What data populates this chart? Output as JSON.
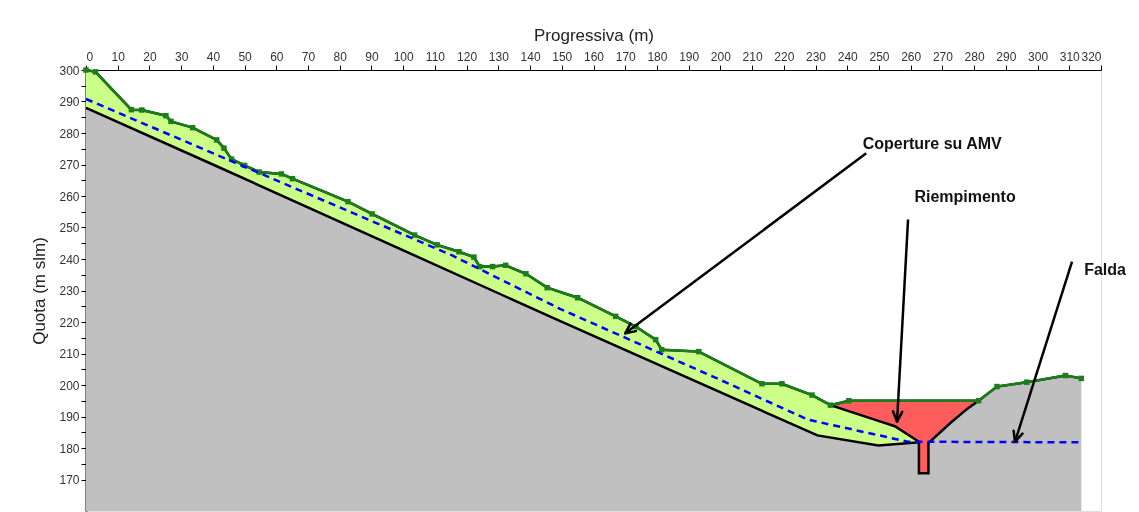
{
  "chart_data": {
    "type": "area",
    "xlabel": "Progressiva (m)",
    "ylabel": "Quota (m slm)",
    "xlim": [
      0,
      320
    ],
    "xticks": [
      0,
      10,
      20,
      30,
      40,
      50,
      60,
      70,
      80,
      90,
      100,
      110,
      120,
      130,
      140,
      150,
      160,
      170,
      180,
      190,
      200,
      210,
      220,
      230,
      240,
      250,
      260,
      270,
      280,
      290,
      300,
      310,
      320
    ],
    "ylim": [
      160,
      300
    ],
    "yticks": [
      170,
      {
        "value": 175,
        "label": null
      },
      180,
      {
        "value": 185,
        "label": null
      },
      190,
      {
        "value": 195,
        "label": null
      },
      200,
      {
        "value": 205,
        "label": null
      },
      210,
      {
        "value": 215,
        "label": null
      },
      220,
      {
        "value": 225,
        "label": null
      },
      230,
      {
        "value": 235,
        "label": null
      },
      240,
      {
        "value": 245,
        "label": null
      },
      250,
      {
        "value": 255,
        "label": null
      },
      260,
      {
        "value": 265,
        "label": null
      },
      270,
      {
        "value": 275,
        "label": null
      },
      280,
      {
        "value": 285,
        "label": null
      },
      290,
      {
        "value": 295,
        "label": null
      },
      300
    ],
    "grid": false,
    "annotations": [
      {
        "text": "Coperture su AMV",
        "x": 170,
        "y": 216.4
      },
      {
        "text": "Riempimento",
        "x": 255.7,
        "y": 188.4
      },
      {
        "text": "Falda",
        "x": 292.9,
        "y": 182
      }
    ],
    "series": [
      {
        "type": "area",
        "color": "#ff5c5c",
        "x": [
          234.7,
          240.5,
          281.4
        ],
        "values": [
          193.6,
          195,
          195
        ]
      },
      {
        "color": "#ccff88",
        "x": [
          0,
          3,
          14.3,
          17.6,
          25.2,
          26.8,
          33.6,
          41.2,
          43.5,
          45.9,
          50,
          54.6,
          61.6,
          65.1,
          82.6,
          90.2,
          103.6,
          110.7,
          117.6,
          122.3,
          124.1,
          128.2,
          132.3,
          138.7,
          145.4,
          155,
          167,
          173.4,
          179.6,
          181.5,
          193.2,
          213.1,
          219.4,
          228.9,
          234.7,
          252.2,
          255,
          262.6
        ],
        "values": [
          300,
          299.4,
          287.4,
          287.3,
          285.5,
          283.7,
          281.7,
          277.8,
          275.2,
          271.7,
          269.7,
          267.6,
          267,
          265.5,
          258.2,
          254.3,
          247.6,
          244.5,
          242.3,
          240.6,
          237.6,
          237.6,
          238,
          235.3,
          230.9,
          227.7,
          221.8,
          218.5,
          214.4,
          211.2,
          210.6,
          200.4,
          200.4,
          196.8,
          193.6,
          187.8,
          186.9,
          182
        ]
      },
      {
        "type": "area",
        "color": "#c0c0c0",
        "x": [
          0,
          40,
          149,
          230.6,
          249.8,
          262.6,
          262.6,
          265.6,
          265.6,
          272.6,
          277.9,
          281.4,
          287.2,
          296.6,
          308.8,
          313.8
        ],
        "values": [
          288,
          270,
          220.5,
          184,
          180.8,
          181.8,
          172,
          172,
          181.6,
          188,
          192.5,
          195,
          199.5,
          200.9,
          203,
          202.1
        ]
      },
      {
        "type": "line",
        "color": "#1a7f1a",
        "marker": "square",
        "x": [
          0,
          3,
          14.3,
          17.6,
          25.2,
          26.8,
          33.6,
          41.2,
          43.5,
          45.9,
          50,
          54.6,
          61.6,
          65.1,
          82.6,
          90.2,
          103.6,
          110.7,
          117.6,
          122.3,
          124.1,
          128.2,
          132.3,
          138.7,
          145.4,
          155,
          167,
          173.4,
          179.6,
          181.5,
          193.2,
          213.1,
          219.4,
          228.9,
          234.7,
          240.5,
          281.4,
          287.2,
          296.6,
          308.8,
          313.8
        ],
        "values": [
          300,
          299.4,
          287.4,
          287.3,
          285.5,
          283.7,
          281.7,
          277.8,
          275.2,
          271.7,
          269.7,
          267.6,
          267,
          265.5,
          258.2,
          254.3,
          247.6,
          244.5,
          242.3,
          240.6,
          237.6,
          237.6,
          238,
          235.3,
          230.9,
          227.7,
          221.8,
          218.5,
          214.4,
          211.2,
          210.6,
          200.4,
          200.4,
          196.8,
          193.6,
          195,
          195,
          199.5,
          200.9,
          203,
          202.1
        ]
      },
      {
        "type": "line",
        "color": "#0000ff",
        "line_style": "dashed",
        "x": [
          0,
          115.3,
          149.4,
          199.6,
          227.6,
          259.1,
          313.8
        ],
        "values": [
          290.8,
          241.2,
          224.2,
          201.8,
          189,
          182,
          181.8
        ]
      }
    ]
  }
}
